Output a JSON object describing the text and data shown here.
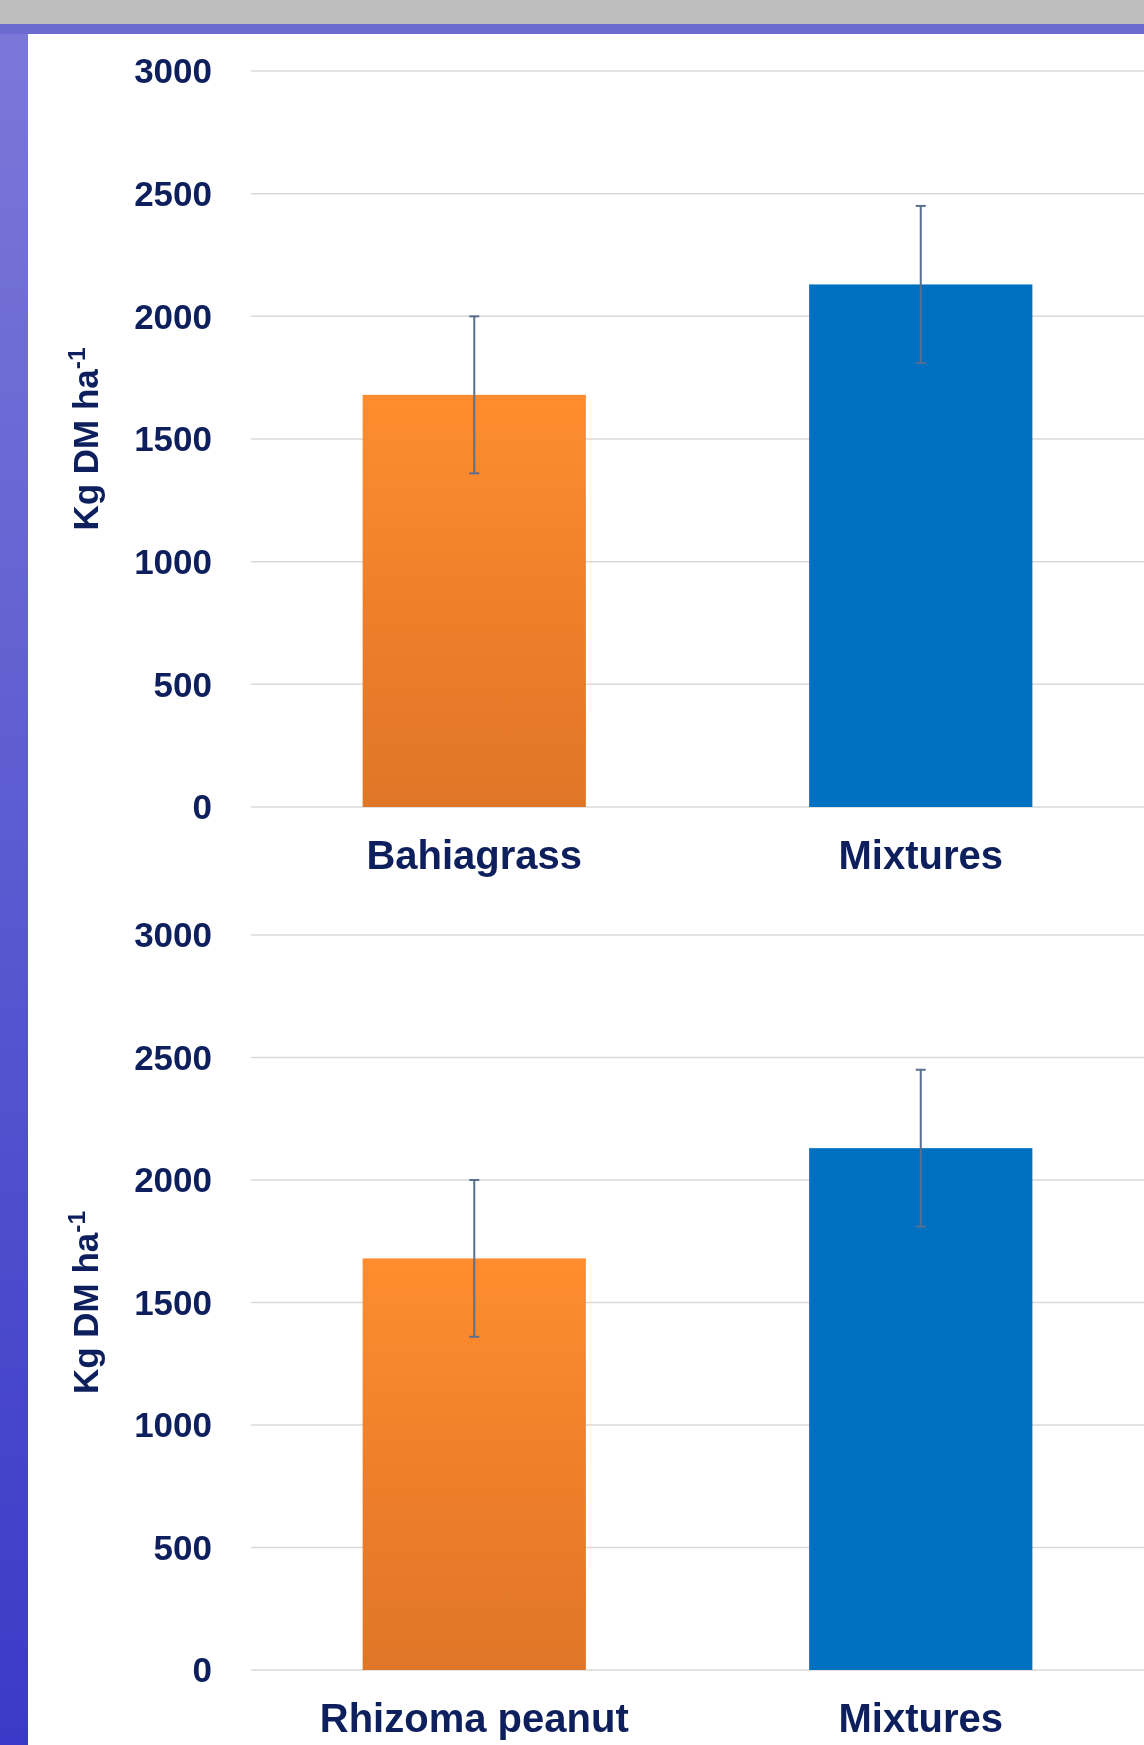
{
  "chart_data": [
    {
      "type": "bar",
      "categories": [
        "Bahiagrass",
        "Mixtures"
      ],
      "values": [
        1680,
        2130
      ],
      "colors": [
        "#f07f2a",
        "#0070c0"
      ],
      "errors": [
        320,
        320
      ],
      "ylabel": "Kg DM ha$^{-1}$",
      "ylim": [
        0,
        3000
      ],
      "yticks": [
        0,
        500,
        1000,
        1500,
        2000,
        2500,
        3000
      ],
      "grid": "y"
    },
    {
      "type": "bar",
      "categories": [
        "Rhizoma peanut",
        "Mixtures"
      ],
      "values": [
        1680,
        2130
      ],
      "colors": [
        "#f07f2a",
        "#0070c0"
      ],
      "errors": [
        320,
        320
      ],
      "ylabel": "Kg DM ha$^{-1}$",
      "ylim": [
        0,
        3000
      ],
      "yticks": [
        0,
        500,
        1000,
        1500,
        2000,
        2500,
        3000
      ],
      "grid": "y"
    }
  ]
}
